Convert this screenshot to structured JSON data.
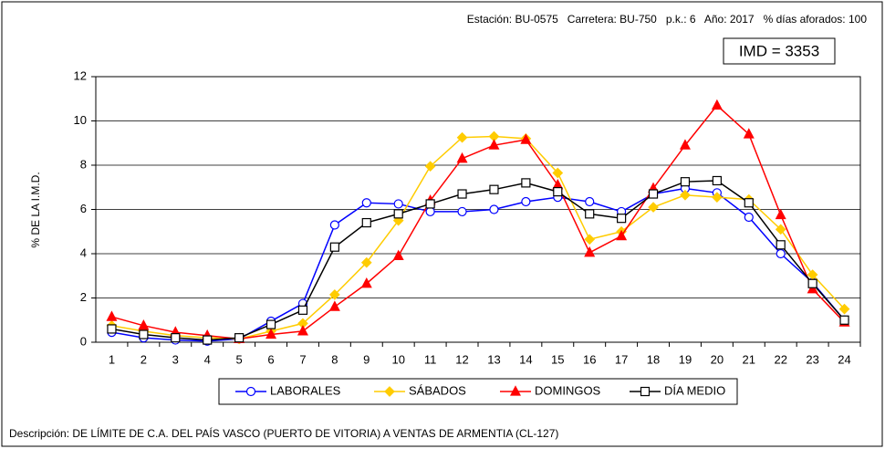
{
  "chart_data": {
    "type": "line",
    "header": "Estación: BU-0575   Carretera: BU-750   p.k.: 6   Año: 2017   % días aforados: 100",
    "annotation": "IMD = 3353",
    "ylabel": "% DE LA I.M.D.",
    "description": "Descripción: DE LÍMITE DE C.A. DEL PAÍS VASCO (PUERTO DE VITORIA) A VENTAS DE ARMENTIA  (CL-127)",
    "categories": [
      "1",
      "2",
      "3",
      "4",
      "5",
      "6",
      "7",
      "8",
      "9",
      "10",
      "11",
      "12",
      "13",
      "14",
      "15",
      "16",
      "17",
      "18",
      "19",
      "20",
      "21",
      "22",
      "23",
      "24"
    ],
    "ylim": [
      0,
      12
    ],
    "yticks": [
      0,
      2,
      4,
      6,
      8,
      10,
      12
    ],
    "grid": true,
    "series": [
      {
        "name": "LABORALES",
        "color": "#0000ff",
        "marker": "circle",
        "marker_fill": "#ffffff",
        "values": [
          0.45,
          0.2,
          0.1,
          0.05,
          0.15,
          0.95,
          1.75,
          5.3,
          6.3,
          6.25,
          5.9,
          5.9,
          6.0,
          6.35,
          6.55,
          6.35,
          5.9,
          6.7,
          6.95,
          6.75,
          5.65,
          4.0,
          2.7,
          1.0
        ]
      },
      {
        "name": "SÁBADOS",
        "color": "#ffcc00",
        "marker": "diamond",
        "marker_fill": "#ffcc00",
        "values": [
          0.75,
          0.5,
          0.3,
          0.2,
          0.15,
          0.5,
          0.85,
          2.15,
          3.6,
          5.5,
          7.95,
          9.25,
          9.3,
          9.2,
          7.65,
          4.65,
          5.0,
          6.1,
          6.65,
          6.55,
          6.45,
          5.1,
          3.05,
          1.5
        ]
      },
      {
        "name": "DOMINGOS",
        "color": "#ff0000",
        "marker": "triangle",
        "marker_fill": "#ff0000",
        "values": [
          1.15,
          0.75,
          0.45,
          0.3,
          0.15,
          0.35,
          0.5,
          1.6,
          2.65,
          3.9,
          6.4,
          8.3,
          8.9,
          9.15,
          7.1,
          4.05,
          4.8,
          6.95,
          8.9,
          10.7,
          9.4,
          5.75,
          2.4,
          0.9
        ]
      },
      {
        "name": "DÍA MEDIO",
        "color": "#000000",
        "marker": "square",
        "marker_fill": "#ffffff",
        "values": [
          0.6,
          0.35,
          0.2,
          0.1,
          0.2,
          0.8,
          1.45,
          4.3,
          5.4,
          5.8,
          6.25,
          6.7,
          6.9,
          7.2,
          6.8,
          5.8,
          5.6,
          6.7,
          7.25,
          7.3,
          6.3,
          4.4,
          2.65,
          1.0
        ]
      }
    ]
  }
}
